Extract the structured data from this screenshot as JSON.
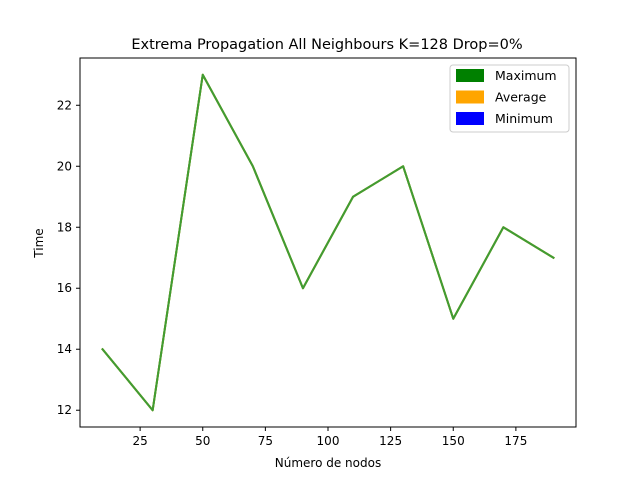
{
  "chart_data": {
    "type": "line",
    "title": "Extrema Propagation All Neighbours K=128 Drop=0%",
    "xlabel": "Número de nodos",
    "ylabel": "Time",
    "x": [
      10,
      30,
      50,
      70,
      90,
      110,
      130,
      150,
      170,
      190
    ],
    "series": [
      {
        "name": "Maximum",
        "color": "#008000",
        "values": [
          14,
          12,
          23,
          20,
          16,
          19,
          20,
          15,
          18,
          17
        ]
      },
      {
        "name": "Average",
        "color": "#ffa500",
        "values": [
          14,
          12,
          23,
          20,
          16,
          19,
          20,
          15,
          18,
          17
        ]
      },
      {
        "name": "Minimum",
        "color": "#0000ff",
        "values": [
          14,
          12,
          23,
          20,
          16,
          19,
          20,
          15,
          18,
          17
        ]
      }
    ],
    "plotted_line_color": "#3f9c35",
    "xlim": [
      1,
      199
    ],
    "ylim": [
      11.45,
      23.55
    ],
    "xticks": [
      25,
      50,
      75,
      100,
      125,
      150,
      175
    ],
    "yticks": [
      12,
      14,
      16,
      18,
      20,
      22
    ],
    "grid": false,
    "legend_position": "upper right"
  }
}
